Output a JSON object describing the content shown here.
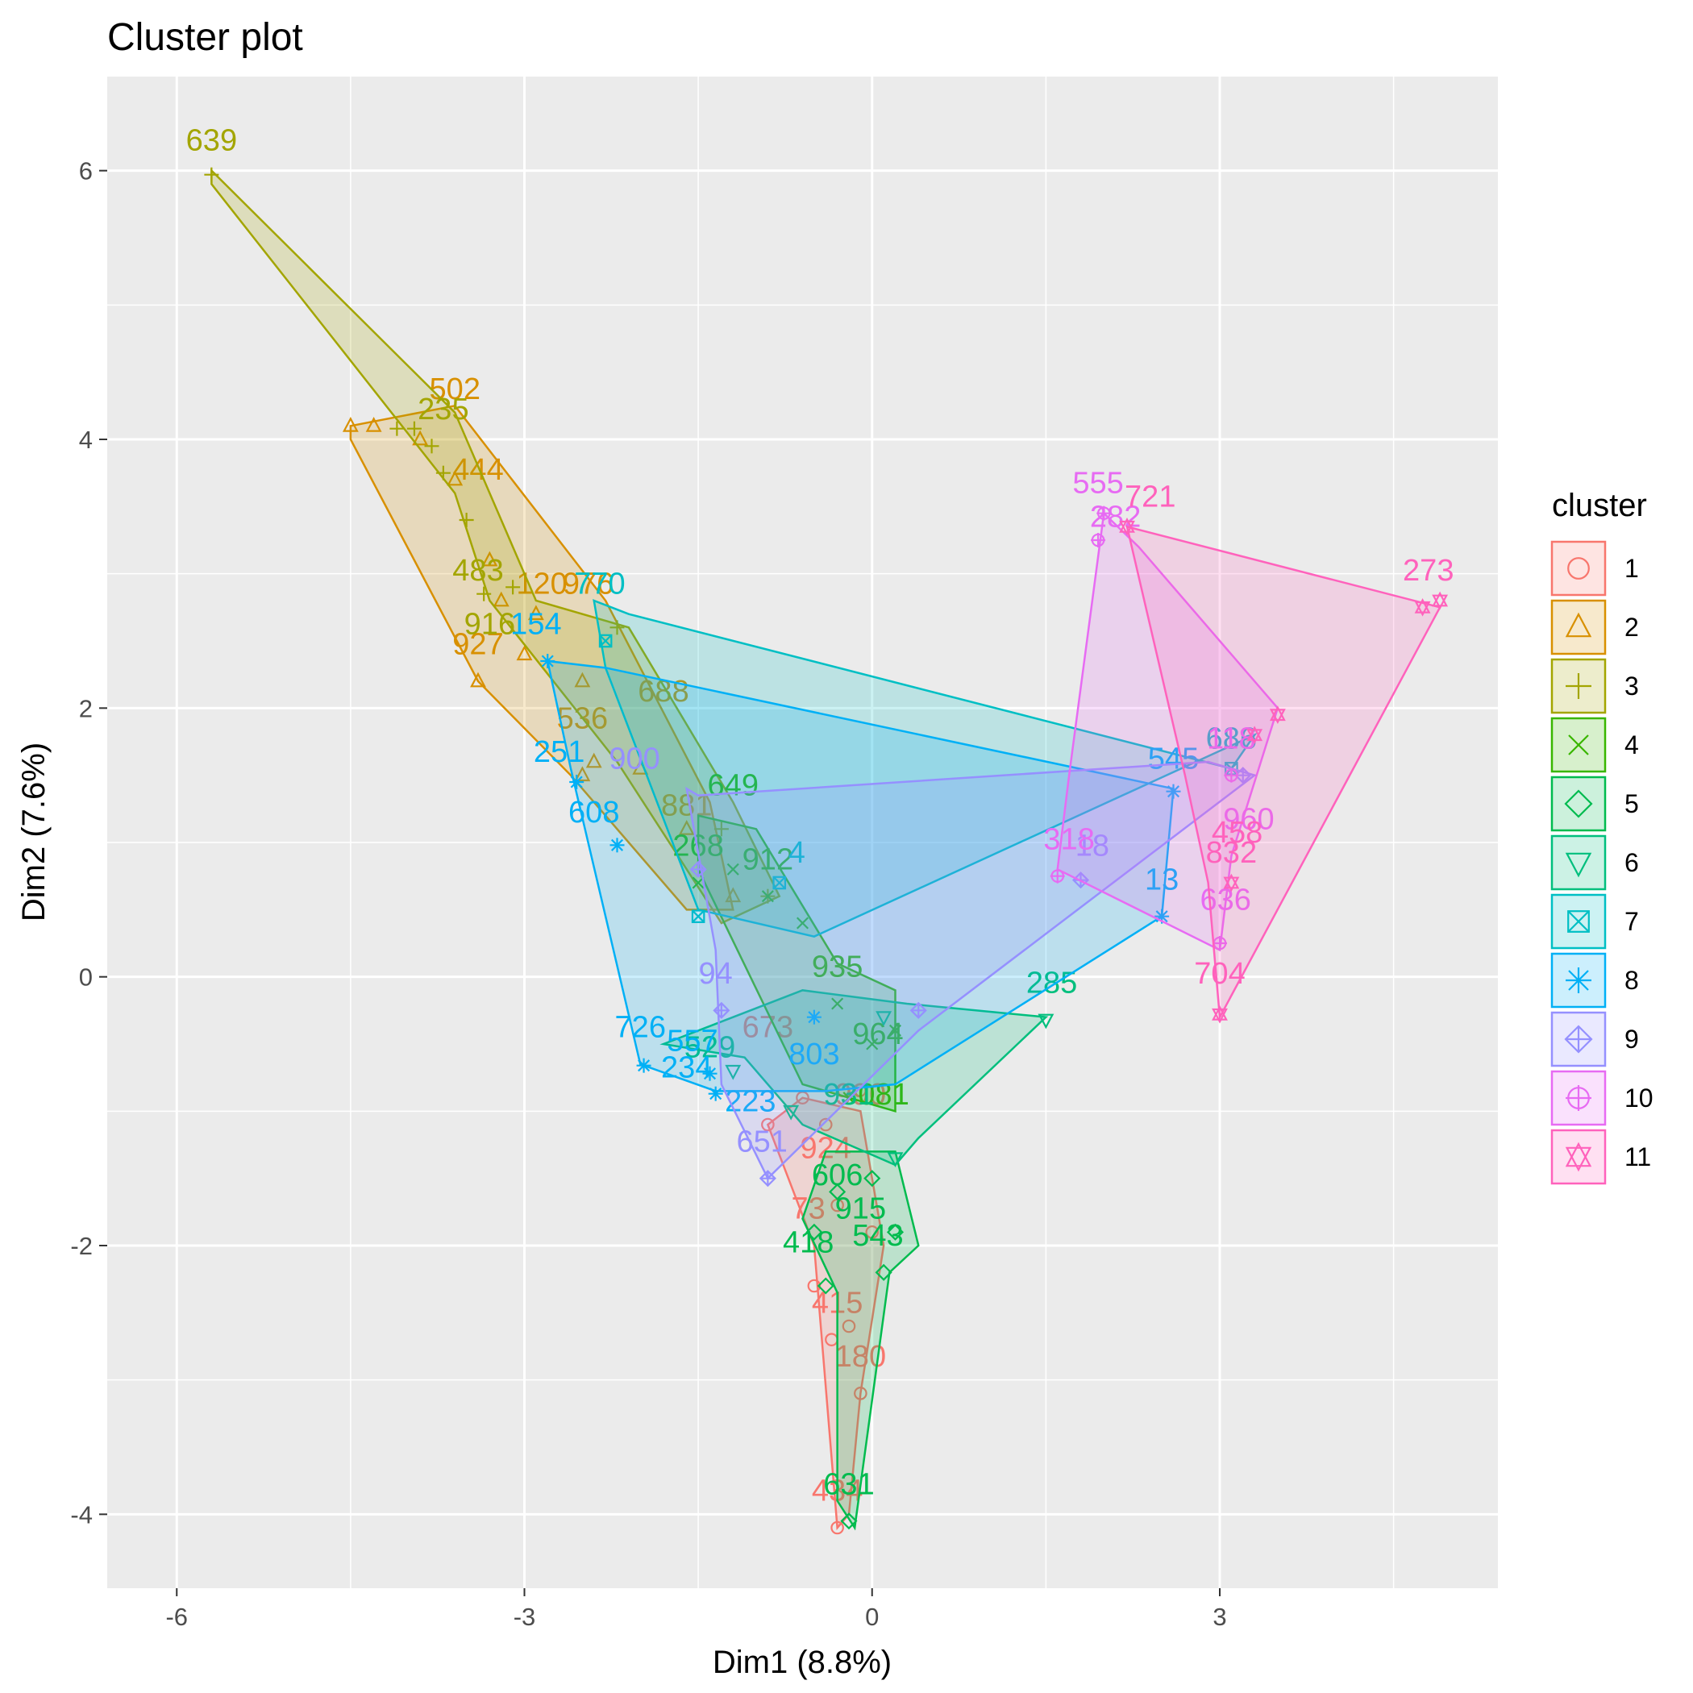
{
  "chart_data": {
    "type": "scatter",
    "title": "Cluster plot",
    "xlabel": "Dim1 (8.8%)",
    "ylabel": "Dim2 (7.6%)",
    "xlim": [
      -6.6,
      5.4
    ],
    "ylim": [
      -4.55,
      6.7
    ],
    "xticks": [
      -6,
      -3,
      0,
      3
    ],
    "xtick_labels": [
      "-6",
      "-3",
      "0",
      "3"
    ],
    "yticks": [
      -4,
      -2,
      0,
      2,
      4,
      6
    ],
    "ytick_labels": [
      "-4",
      "-2",
      "0",
      "2",
      "4",
      "6"
    ],
    "grid": true,
    "legend": {
      "title": "cluster",
      "position": "right"
    },
    "series": [
      {
        "name": "1",
        "color": "#F8766D",
        "shape": "circle",
        "hull": [
          [
            -0.3,
            -4.1
          ],
          [
            -0.5,
            -2.0
          ],
          [
            -0.9,
            -1.1
          ],
          [
            -0.6,
            -0.9
          ],
          [
            -0.1,
            -1.0
          ],
          [
            0.1,
            -2.0
          ],
          [
            -0.1,
            -3.1
          ],
          [
            -0.2,
            -4.0
          ]
        ],
        "points": [
          [
            -0.3,
            -4.1
          ],
          [
            -0.35,
            -2.7
          ],
          [
            -0.1,
            -3.1
          ],
          [
            -0.2,
            -2.6
          ],
          [
            -0.5,
            -2.3
          ],
          [
            -0.3,
            -1.7
          ],
          [
            -0.6,
            -0.9
          ],
          [
            -0.4,
            -1.1
          ],
          [
            0.0,
            -1.9
          ],
          [
            -0.9,
            -1.1
          ]
        ],
        "labels": [
          {
            "text": "434",
            "x": -0.3,
            "y": -3.9
          },
          {
            "text": "180",
            "x": -0.1,
            "y": -2.9
          },
          {
            "text": "415",
            "x": -0.3,
            "y": -2.5
          },
          {
            "text": "673",
            "x": -0.9,
            "y": -0.45
          },
          {
            "text": "990",
            "x": -0.1,
            "y": -0.95
          },
          {
            "text": "924",
            "x": -0.4,
            "y": -1.35
          },
          {
            "text": "73",
            "x": -0.55,
            "y": -1.8
          }
        ]
      },
      {
        "name": "2",
        "color": "#D89000",
        "shape": "triangle",
        "hull": [
          [
            -4.5,
            4.1
          ],
          [
            -3.6,
            4.25
          ],
          [
            -2.3,
            2.8
          ],
          [
            -2.0,
            2.3
          ],
          [
            -1.4,
            1.3
          ],
          [
            -1.2,
            0.5
          ],
          [
            -1.6,
            0.5
          ],
          [
            -2.6,
            1.5
          ],
          [
            -3.4,
            2.2
          ],
          [
            -4.5,
            4.0
          ]
        ],
        "points": [
          [
            -4.5,
            4.1
          ],
          [
            -4.3,
            4.1
          ],
          [
            -3.9,
            4.0
          ],
          [
            -3.6,
            3.7
          ],
          [
            -3.3,
            3.1
          ],
          [
            -3.2,
            2.8
          ],
          [
            -2.9,
            2.7
          ],
          [
            -3.0,
            2.4
          ],
          [
            -3.4,
            2.2
          ],
          [
            -2.5,
            2.2
          ],
          [
            -2.4,
            1.6
          ],
          [
            -2.5,
            1.5
          ],
          [
            -2.0,
            1.55
          ],
          [
            -1.6,
            1.1
          ],
          [
            -1.2,
            0.6
          ]
        ],
        "labels": [
          {
            "text": "502",
            "x": -3.6,
            "y": 4.3
          },
          {
            "text": "444",
            "x": -3.4,
            "y": 3.7
          },
          {
            "text": "120",
            "x": -2.85,
            "y": 2.85
          },
          {
            "text": "927",
            "x": -3.4,
            "y": 2.4
          },
          {
            "text": "976",
            "x": -2.45,
            "y": 2.85
          },
          {
            "text": "688",
            "x": -1.8,
            "y": 2.05
          },
          {
            "text": "536",
            "x": -2.5,
            "y": 1.85
          },
          {
            "text": "881",
            "x": -1.6,
            "y": 1.2
          }
        ]
      },
      {
        "name": "3",
        "color": "#A3A500",
        "shape": "plus",
        "hull": [
          [
            -5.7,
            6.0
          ],
          [
            -3.6,
            4.2
          ],
          [
            -2.9,
            2.8
          ],
          [
            -2.1,
            2.6
          ],
          [
            -1.2,
            1.3
          ],
          [
            -0.8,
            0.6
          ],
          [
            -1.3,
            0.4
          ],
          [
            -2.2,
            1.6
          ],
          [
            -3.3,
            2.8
          ],
          [
            -3.6,
            3.6
          ],
          [
            -5.7,
            5.9
          ]
        ],
        "points": [
          [
            -5.7,
            5.97
          ],
          [
            -4.1,
            4.08
          ],
          [
            -3.95,
            4.08
          ],
          [
            -3.8,
            3.95
          ],
          [
            -3.7,
            3.75
          ],
          [
            -3.5,
            3.4
          ],
          [
            -3.35,
            2.85
          ],
          [
            -3.1,
            2.9
          ],
          [
            -2.2,
            2.6
          ],
          [
            -1.3,
            1.1
          ],
          [
            -0.9,
            0.6
          ]
        ],
        "labels": [
          {
            "text": "639",
            "x": -5.7,
            "y": 6.15
          },
          {
            "text": "235",
            "x": -3.7,
            "y": 4.15
          },
          {
            "text": "483",
            "x": -3.4,
            "y": 2.95
          },
          {
            "text": "916",
            "x": -3.3,
            "y": 2.55
          }
        ]
      },
      {
        "name": "4",
        "color": "#39B600",
        "shape": "cross",
        "hull": [
          [
            -1.5,
            1.2
          ],
          [
            -1.0,
            1.1
          ],
          [
            -0.3,
            0.1
          ],
          [
            0.2,
            -0.1
          ],
          [
            0.2,
            -1.0
          ],
          [
            -0.6,
            -0.8
          ],
          [
            -1.5,
            0.8
          ]
        ],
        "points": [
          [
            -1.5,
            0.7
          ],
          [
            -1.2,
            0.8
          ],
          [
            -0.9,
            0.6
          ],
          [
            -0.6,
            0.4
          ],
          [
            -0.3,
            -0.2
          ],
          [
            0.0,
            -0.5
          ],
          [
            0.2,
            -0.4
          ],
          [
            -0.2,
            -0.9
          ]
        ],
        "labels": [
          {
            "text": "649",
            "x": -1.2,
            "y": 1.35
          },
          {
            "text": "268",
            "x": -1.5,
            "y": 0.9
          },
          {
            "text": "912",
            "x": -0.9,
            "y": 0.8
          },
          {
            "text": "964",
            "x": 0.05,
            "y": -0.5
          },
          {
            "text": "935",
            "x": -0.3,
            "y": 0.0
          },
          {
            "text": "081",
            "x": 0.1,
            "y": -0.95
          }
        ]
      },
      {
        "name": "5",
        "color": "#00BB4E",
        "shape": "diamond",
        "hull": [
          [
            -0.3,
            -2.35
          ],
          [
            -0.6,
            -1.8
          ],
          [
            -0.4,
            -1.3
          ],
          [
            0.2,
            -1.3
          ],
          [
            0.4,
            -2.0
          ],
          [
            0.15,
            -2.2
          ],
          [
            -0.15,
            -4.1
          ],
          [
            -0.3,
            -3.9
          ]
        ],
        "points": [
          [
            -0.2,
            -4.05
          ],
          [
            -0.4,
            -2.3
          ],
          [
            -0.5,
            -1.9
          ],
          [
            -0.3,
            -1.6
          ],
          [
            0.1,
            -2.2
          ],
          [
            0.2,
            -1.9
          ],
          [
            0.0,
            -1.5
          ]
        ],
        "labels": [
          {
            "text": "631",
            "x": -0.2,
            "y": -3.85
          },
          {
            "text": "418",
            "x": -0.55,
            "y": -2.05
          },
          {
            "text": "543",
            "x": 0.05,
            "y": -2.0
          },
          {
            "text": "915",
            "x": -0.1,
            "y": -1.8
          },
          {
            "text": "606",
            "x": -0.3,
            "y": -1.55
          }
        ]
      },
      {
        "name": "6",
        "color": "#00BF7D",
        "shape": "triangle-down",
        "hull": [
          [
            -1.8,
            -0.5
          ],
          [
            -1.1,
            -0.6
          ],
          [
            -0.6,
            -1.1
          ],
          [
            0.2,
            -1.4
          ],
          [
            0.4,
            -1.2
          ],
          [
            1.5,
            -0.3
          ],
          [
            0.3,
            -0.2
          ],
          [
            -0.6,
            -0.1
          ]
        ],
        "points": [
          [
            1.5,
            -0.32
          ],
          [
            0.2,
            -1.35
          ],
          [
            -1.2,
            -0.7
          ],
          [
            -0.7,
            -1.0
          ],
          [
            0.1,
            -0.3
          ]
        ],
        "labels": [
          {
            "text": "285",
            "x": 1.55,
            "y": -0.12
          },
          {
            "text": "529",
            "x": -1.4,
            "y": -0.6
          },
          {
            "text": "931",
            "x": -0.2,
            "y": -0.95
          }
        ]
      },
      {
        "name": "7",
        "color": "#00BFC4",
        "shape": "square-cross",
        "hull": [
          [
            -2.4,
            2.8
          ],
          [
            -2.1,
            2.7
          ],
          [
            3.1,
            1.55
          ],
          [
            3.3,
            1.8
          ],
          [
            -0.5,
            0.3
          ],
          [
            -1.5,
            0.5
          ],
          [
            -2.3,
            2.3
          ]
        ],
        "points": [
          [
            3.1,
            1.55
          ],
          [
            -0.8,
            0.7
          ],
          [
            -1.5,
            0.45
          ],
          [
            -2.3,
            2.5
          ]
        ],
        "labels": [
          {
            "text": "770",
            "x": -2.35,
            "y": 2.85
          },
          {
            "text": "686",
            "x": 3.1,
            "y": 1.7
          },
          {
            "text": "4",
            "x": -0.65,
            "y": 0.85
          }
        ]
      },
      {
        "name": "8",
        "color": "#00B0F6",
        "shape": "asterisk",
        "hull": [
          [
            -2.8,
            2.35
          ],
          [
            -2.6,
            1.55
          ],
          [
            -2.0,
            -0.65
          ],
          [
            -1.35,
            -0.85
          ],
          [
            -0.4,
            -0.85
          ],
          [
            0.2,
            -0.8
          ],
          [
            2.5,
            0.45
          ],
          [
            2.6,
            1.4
          ],
          [
            -2.3,
            2.3
          ]
        ],
        "points": [
          [
            -2.8,
            2.35
          ],
          [
            -2.55,
            1.45
          ],
          [
            -2.2,
            0.98
          ],
          [
            -1.97,
            -0.66
          ],
          [
            -1.4,
            -0.72
          ],
          [
            -1.35,
            -0.87
          ],
          [
            2.5,
            0.45
          ],
          [
            2.6,
            1.38
          ],
          [
            -0.5,
            -0.3
          ]
        ],
        "labels": [
          {
            "text": "154",
            "x": -2.9,
            "y": 2.55
          },
          {
            "text": "251",
            "x": -2.7,
            "y": 1.6
          },
          {
            "text": "608",
            "x": -2.4,
            "y": 1.15
          },
          {
            "text": "726",
            "x": -2.0,
            "y": -0.45
          },
          {
            "text": "557",
            "x": -1.55,
            "y": -0.55
          },
          {
            "text": "234",
            "x": -1.6,
            "y": -0.75
          },
          {
            "text": "545",
            "x": 2.6,
            "y": 1.55
          },
          {
            "text": "13",
            "x": 2.5,
            "y": 0.65
          },
          {
            "text": "223",
            "x": -1.05,
            "y": -1.0
          },
          {
            "text": "803",
            "x": -0.5,
            "y": -0.65
          }
        ]
      },
      {
        "name": "9",
        "color": "#9590FF",
        "shape": "diamond-plus",
        "hull": [
          [
            -1.6,
            1.4
          ],
          [
            -1.35,
            0.2
          ],
          [
            -1.3,
            -0.8
          ],
          [
            -0.9,
            -1.5
          ],
          [
            0.4,
            -0.4
          ],
          [
            3.3,
            1.5
          ],
          [
            2.9,
            1.6
          ],
          [
            -1.5,
            1.35
          ]
        ],
        "points": [
          [
            -1.3,
            -0.25
          ],
          [
            -0.9,
            -1.5
          ],
          [
            0.4,
            -0.25
          ],
          [
            3.2,
            1.5
          ],
          [
            1.8,
            0.72
          ],
          [
            -1.5,
            0.8
          ]
        ],
        "labels": [
          {
            "text": "900",
            "x": -2.05,
            "y": 1.55
          },
          {
            "text": "94",
            "x": -1.35,
            "y": -0.05
          },
          {
            "text": "651",
            "x": -0.95,
            "y": -1.3
          },
          {
            "text": "18",
            "x": 1.9,
            "y": 0.9
          }
        ]
      },
      {
        "name": "10",
        "color": "#E76BF3",
        "shape": "circle-plus",
        "hull": [
          [
            2.0,
            3.45
          ],
          [
            2.3,
            3.2
          ],
          [
            3.5,
            2.0
          ],
          [
            3.1,
            0.9
          ],
          [
            3.0,
            0.2
          ],
          [
            1.6,
            0.8
          ],
          [
            1.7,
            1.5
          ]
        ],
        "points": [
          [
            2.0,
            3.45
          ],
          [
            1.95,
            3.25
          ],
          [
            3.0,
            0.25
          ],
          [
            3.1,
            1.5
          ],
          [
            1.6,
            0.75
          ]
        ],
        "labels": [
          {
            "text": "555",
            "x": 1.95,
            "y": 3.6
          },
          {
            "text": "282",
            "x": 2.1,
            "y": 3.35
          },
          {
            "text": "636",
            "x": 3.05,
            "y": 0.5
          },
          {
            "text": "960",
            "x": 3.25,
            "y": 1.1
          },
          {
            "text": "318",
            "x": 1.7,
            "y": 0.95
          },
          {
            "text": "118",
            "x": 3.1,
            "y": 1.7
          }
        ]
      },
      {
        "name": "11",
        "color": "#FF62BC",
        "shape": "star-triangles",
        "hull": [
          [
            2.2,
            3.35
          ],
          [
            4.9,
            2.75
          ],
          [
            3.0,
            -0.3
          ],
          [
            2.9,
            0.7
          ],
          [
            2.7,
            1.5
          ]
        ],
        "points": [
          [
            2.2,
            3.35
          ],
          [
            4.75,
            2.75
          ],
          [
            4.9,
            2.8
          ],
          [
            3.0,
            -0.28
          ],
          [
            3.1,
            0.7
          ],
          [
            3.5,
            1.95
          ],
          [
            3.3,
            1.8
          ]
        ],
        "labels": [
          {
            "text": "721",
            "x": 2.4,
            "y": 3.5
          },
          {
            "text": "273",
            "x": 4.8,
            "y": 2.95
          },
          {
            "text": "704",
            "x": 3.0,
            "y": -0.05
          },
          {
            "text": "832",
            "x": 3.1,
            "y": 0.85
          },
          {
            "text": "458",
            "x": 3.15,
            "y": 1.0
          }
        ]
      }
    ]
  }
}
